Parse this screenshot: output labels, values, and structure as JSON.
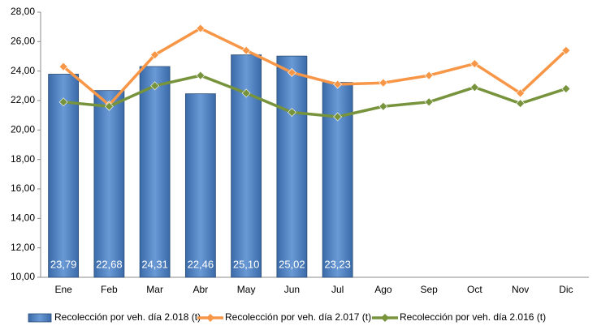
{
  "chart_data": {
    "type": "bar",
    "categories": [
      "Ene",
      "Feb",
      "Mar",
      "Abr",
      "May",
      "Jun",
      "Jul",
      "Ago",
      "Sep",
      "Oct",
      "Nov",
      "Dic"
    ],
    "series": [
      {
        "name": "Recolección por veh. día 2.018 (t)",
        "type": "bar",
        "color": "#4f81bd",
        "values": [
          23.79,
          22.68,
          24.31,
          22.46,
          25.1,
          25.02,
          23.23,
          null,
          null,
          null,
          null,
          null
        ],
        "value_labels": [
          "23,79",
          "22,68",
          "24,31",
          "22,46",
          "25,10",
          "25,02",
          "23,23",
          null,
          null,
          null,
          null,
          null
        ]
      },
      {
        "name": "Recolección por veh. día 2.017 (t)",
        "type": "line",
        "color": "#f79646",
        "values": [
          24.3,
          21.7,
          25.1,
          26.9,
          25.4,
          23.9,
          23.1,
          23.2,
          23.7,
          24.5,
          22.5,
          25.4
        ]
      },
      {
        "name": "Recolección por veh. día 2.016 (t)",
        "type": "line",
        "color": "#77933c",
        "values": [
          21.9,
          21.6,
          23.0,
          23.7,
          22.5,
          21.2,
          20.9,
          21.6,
          21.9,
          22.9,
          21.8,
          22.8
        ]
      }
    ],
    "ylim": [
      10,
      28
    ],
    "yticks": [
      {
        "value": 10,
        "label": "10,00"
      },
      {
        "value": 12,
        "label": "12,00"
      },
      {
        "value": 14,
        "label": "14,00"
      },
      {
        "value": 16,
        "label": "16,00"
      },
      {
        "value": 18,
        "label": "18,00"
      },
      {
        "value": 20,
        "label": "20,00"
      },
      {
        "value": 22,
        "label": "22,00"
      },
      {
        "value": 24,
        "label": "24,00"
      },
      {
        "value": 26,
        "label": "26,00"
      },
      {
        "value": 28,
        "label": "28,00"
      }
    ],
    "legend": "bottom"
  }
}
